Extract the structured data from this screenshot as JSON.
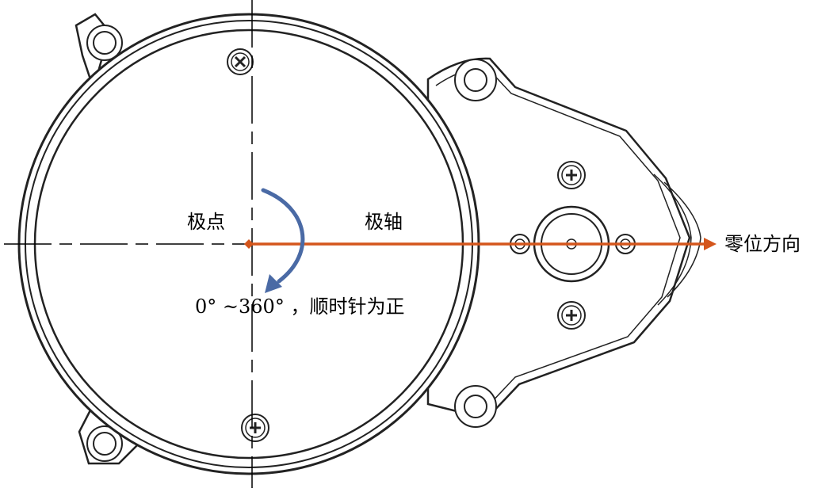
{
  "diagram": {
    "labels": {
      "pole": "极点",
      "polar_axis": "极轴",
      "zero_direction": "零位方向",
      "angle_range": "0° ~360° ，顺时针为正"
    },
    "colors": {
      "axis_arrow": "#d4561c",
      "rotation_arrow": "#4a6aa5",
      "outline": "#222222",
      "centerline": "#000000"
    },
    "icons": {
      "screw": "phillips-screw-icon",
      "mounting_hole": "ring-icon"
    }
  }
}
